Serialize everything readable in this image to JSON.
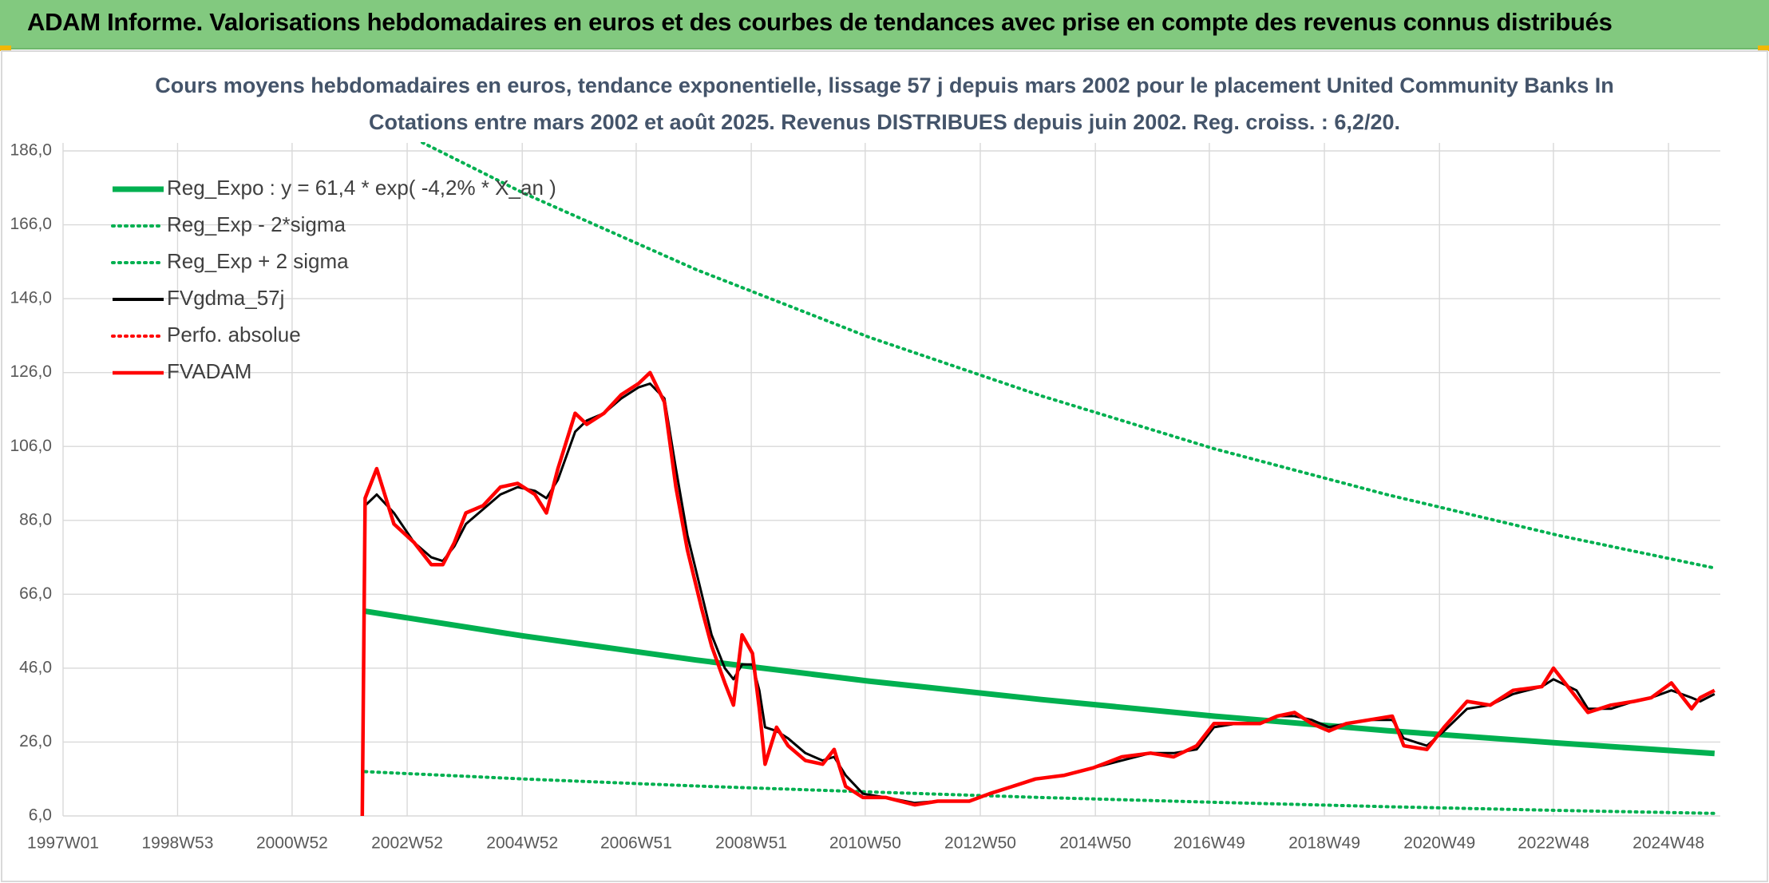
{
  "header": {
    "title": "ADAM Informe. Valorisations hebdomadaires en euros et des courbes de tendances avec prise en compte des revenus connus distribués"
  },
  "chart_data": {
    "type": "line",
    "title": "Cours moyens hebdomadaires en euros, tendance exponentielle, lissage 57 j depuis mars 2002 pour le placement United Community Banks In",
    "subtitle": "Cotations entre mars 2002 et août 2025. Revenus DISTRIBUES depuis juin 2002. Reg. croiss. : 6,2/20.",
    "grid": true,
    "legend": "top-left",
    "xlim": [
      1997,
      2025.8
    ],
    "ylim": [
      6,
      186
    ],
    "yticks": [
      {
        "value": 6,
        "label": "6,0"
      },
      {
        "value": 26,
        "label": "26,0"
      },
      {
        "value": 46,
        "label": "46,0"
      },
      {
        "value": 66,
        "label": "66,0"
      },
      {
        "value": 86,
        "label": "86,0"
      },
      {
        "value": 106,
        "label": "106,0"
      },
      {
        "value": 126,
        "label": "126,0"
      },
      {
        "value": 146,
        "label": "146,0"
      },
      {
        "value": 166,
        "label": "166,0"
      },
      {
        "value": 186,
        "label": "186,0"
      }
    ],
    "xticks": [
      {
        "value": 1997,
        "label": "1997W01"
      },
      {
        "value": 1998.99,
        "label": "1998W53"
      },
      {
        "value": 2000.98,
        "label": "2000W52"
      },
      {
        "value": 2002.98,
        "label": "2002W52"
      },
      {
        "value": 2004.98,
        "label": "2004W52"
      },
      {
        "value": 2006.96,
        "label": "2006W51"
      },
      {
        "value": 2008.96,
        "label": "2008W51"
      },
      {
        "value": 2010.94,
        "label": "2010W50"
      },
      {
        "value": 2012.94,
        "label": "2012W50"
      },
      {
        "value": 2014.94,
        "label": "2014W50"
      },
      {
        "value": 2016.92,
        "label": "2016W49"
      },
      {
        "value": 2018.92,
        "label": "2018W49"
      },
      {
        "value": 2020.92,
        "label": "2020W49"
      },
      {
        "value": 2022.9,
        "label": "2022W48"
      },
      {
        "value": 2024.9,
        "label": "2024W48"
      }
    ],
    "x": [
      2002.2,
      2002.25,
      2002.45,
      2002.75,
      2003.1,
      2003.4,
      2003.6,
      2003.8,
      2004.0,
      2004.3,
      2004.6,
      2004.9,
      2005.2,
      2005.4,
      2005.6,
      2005.9,
      2006.1,
      2006.4,
      2006.7,
      2007.0,
      2007.2,
      2007.45,
      2007.65,
      2007.85,
      2008.1,
      2008.27,
      2008.5,
      2008.65,
      2008.8,
      2008.98,
      2009.1,
      2009.2,
      2009.4,
      2009.6,
      2009.9,
      2010.2,
      2010.4,
      2010.6,
      2010.9,
      2011.3,
      2011.8,
      2012.2,
      2012.75,
      2013.1,
      2013.5,
      2013.9,
      2014.4,
      2014.9,
      2015.4,
      2015.9,
      2016.3,
      2016.7,
      2017.0,
      2017.4,
      2017.8,
      2018.1,
      2018.4,
      2018.7,
      2019.0,
      2019.3,
      2019.7,
      2020.1,
      2020.3,
      2020.7,
      2021.0,
      2021.4,
      2021.8,
      2022.2,
      2022.7,
      2022.9,
      2023.3,
      2023.5,
      2023.9,
      2024.3,
      2024.6,
      2024.95,
      2025.3,
      2025.45,
      2025.7
    ],
    "series": [
      {
        "name": "Reg_Expo : y = 61,4 * exp( -4,2% *  X_an )",
        "color": "#00b050",
        "style": "solid",
        "x": [
          2002.25,
          2005,
          2008,
          2011,
          2014,
          2017,
          2020,
          2023,
          2025.7
        ],
        "values": [
          61.4,
          54.7,
          48.2,
          42.5,
          37.5,
          33.0,
          29.1,
          25.7,
          22.9
        ]
      },
      {
        "name": "Reg_Exp - 2*sigma",
        "color": "#00b050",
        "style": "dotted",
        "x": [
          2002.25,
          2005,
          2008,
          2011,
          2014,
          2017,
          2020,
          2023,
          2025.7
        ],
        "values": [
          18,
          16.0,
          14.1,
          12.5,
          11.0,
          9.7,
          8.5,
          7.5,
          6.7
        ]
      },
      {
        "name": "Reg_Exp + 2 sigma",
        "color": "#00b050",
        "style": "dotted",
        "x": [
          2002.25,
          2005,
          2008,
          2011,
          2014,
          2017,
          2020,
          2023,
          2025.7
        ],
        "values": [
          196,
          174.6,
          153.9,
          135.6,
          119.7,
          105.4,
          93.0,
          81.9,
          73.1
        ]
      },
      {
        "name": "FVgdma_57j",
        "color": "#000000",
        "style": "solid",
        "values": [
          null,
          90,
          93,
          88,
          80,
          76,
          75,
          79,
          85,
          89,
          93,
          95,
          94,
          92,
          97,
          110,
          113,
          115,
          119,
          122,
          123,
          119,
          100,
          82,
          66,
          55,
          46,
          43,
          47,
          47,
          40,
          30,
          29,
          27,
          23,
          21,
          22,
          17,
          12,
          11,
          9.5,
          10,
          10,
          12,
          14,
          16,
          17,
          19,
          21,
          23,
          23,
          24,
          30,
          31,
          31,
          33,
          33,
          32,
          30,
          31,
          32,
          32,
          27,
          25,
          29,
          35,
          36,
          39,
          41,
          43,
          40,
          35,
          35,
          37,
          38,
          40,
          38,
          37,
          39
        ]
      },
      {
        "name": "Perfo. absolue",
        "color": "#ff0000",
        "style": "dotted"
      },
      {
        "name": "FVADAM",
        "color": "#ff0000",
        "style": "solid",
        "values": [
          6,
          92,
          100,
          85,
          80,
          74,
          74,
          80,
          88,
          90,
          95,
          96,
          93,
          88,
          100,
          115,
          112,
          115,
          120,
          123,
          126,
          118,
          95,
          78,
          62,
          52,
          42,
          36,
          55,
          50,
          35,
          20,
          30,
          25,
          21,
          20,
          24,
          14,
          11,
          11,
          9,
          10,
          10,
          12,
          14,
          16,
          17,
          19,
          22,
          23,
          22,
          25,
          31,
          31,
          31,
          33,
          34,
          31,
          29,
          31,
          32,
          33,
          25,
          24,
          30,
          37,
          36,
          40,
          41,
          46,
          38,
          34,
          36,
          37,
          38,
          42,
          35,
          38,
          40
        ]
      }
    ]
  }
}
